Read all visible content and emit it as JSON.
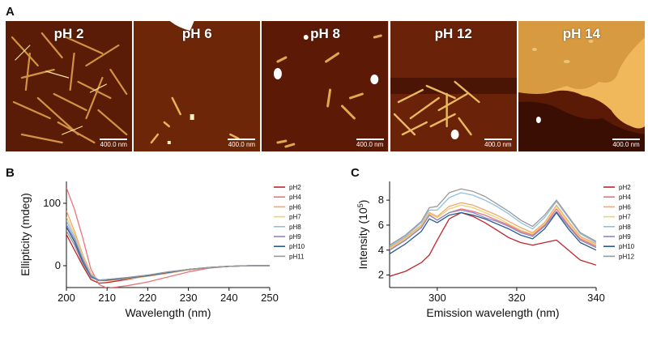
{
  "panels": {
    "a": "A",
    "b": "B",
    "c": "C"
  },
  "afm": {
    "tiles": [
      {
        "label": "pH 2",
        "scale": "400.0 nm"
      },
      {
        "label": "pH 6",
        "scale": "400.0 nm"
      },
      {
        "label": "pH 8",
        "scale": "400.0 nm"
      },
      {
        "label": "pH 12",
        "scale": "400.0 nm"
      },
      {
        "label": "pH 14",
        "scale": "400.0 nm"
      }
    ]
  },
  "chart_data": [
    {
      "type": "line",
      "xlabel": "Wavelength (nm)",
      "ylabel": "Ellipticity (mdeg)",
      "xlim": [
        200,
        250
      ],
      "ylim": [
        -35,
        135
      ],
      "xticks": [
        200,
        210,
        220,
        230,
        240,
        250
      ],
      "yticks": [
        0,
        100
      ],
      "grid": false,
      "legend": "top-right",
      "x": [
        200,
        202,
        204,
        206,
        208,
        210,
        215,
        220,
        225,
        230,
        235,
        240,
        245,
        250
      ],
      "series": [
        {
          "name": "pH2",
          "color": "#c0262d",
          "values": [
            50,
            25,
            0,
            -22,
            -28,
            -27,
            -22,
            -16,
            -11,
            -6,
            -3,
            -1,
            0,
            0
          ]
        },
        {
          "name": "pH4",
          "color": "#e8757a",
          "values": [
            125,
            90,
            45,
            -5,
            -30,
            -36,
            -32,
            -26,
            -18,
            -10,
            -4,
            -1,
            0,
            0
          ]
        },
        {
          "name": "pH6",
          "color": "#f3a86b",
          "values": [
            88,
            55,
            18,
            -12,
            -24,
            -24,
            -21,
            -17,
            -12,
            -7,
            -3,
            -1,
            0,
            0
          ]
        },
        {
          "name": "pH7",
          "color": "#f0cf72",
          "values": [
            78,
            50,
            15,
            -14,
            -24,
            -23,
            -20,
            -16,
            -11,
            -7,
            -3,
            -1,
            0,
            0
          ]
        },
        {
          "name": "pH8",
          "color": "#8fc1e3",
          "values": [
            72,
            46,
            12,
            -15,
            -23,
            -22,
            -19,
            -15,
            -11,
            -6,
            -3,
            -1,
            0,
            0
          ]
        },
        {
          "name": "pH9",
          "color": "#8a86c8",
          "values": [
            66,
            42,
            10,
            -16,
            -23,
            -22,
            -19,
            -15,
            -10,
            -6,
            -3,
            -1,
            0,
            0
          ]
        },
        {
          "name": "pH10",
          "color": "#2a5b8f",
          "values": [
            62,
            38,
            6,
            -18,
            -24,
            -23,
            -20,
            -16,
            -11,
            -6,
            -3,
            -1,
            0,
            0
          ]
        },
        {
          "name": "pH11",
          "color": "#999999",
          "values": [
            56,
            33,
            3,
            -19,
            -24,
            -22,
            -19,
            -15,
            -10,
            -6,
            -3,
            -1,
            0,
            0
          ]
        }
      ]
    },
    {
      "type": "line",
      "xlabel": "Emission wavelength (nm)",
      "ylabel": "Intensity (10",
      "ylabel_exp": "5",
      "ylabel_tail": ")",
      "xlim": [
        288,
        340
      ],
      "ylim": [
        1,
        9.5
      ],
      "xticks": [
        300,
        320,
        340
      ],
      "yticks": [
        2,
        4,
        6,
        8
      ],
      "grid": false,
      "legend": "top-right",
      "x": [
        288,
        292,
        296,
        298,
        300,
        303,
        306,
        309,
        312,
        315,
        318,
        321,
        324,
        327,
        330,
        333,
        336,
        340
      ],
      "series": [
        {
          "name": "pH2",
          "color": "#c0262d",
          "values": [
            1.9,
            2.3,
            3.0,
            3.6,
            4.8,
            6.5,
            7.0,
            6.7,
            6.2,
            5.6,
            5.0,
            4.6,
            4.4,
            4.6,
            4.8,
            4.0,
            3.2,
            2.8
          ]
        },
        {
          "name": "pH4",
          "color": "#e8757a",
          "values": [
            4.0,
            4.8,
            5.8,
            6.8,
            6.4,
            7.0,
            7.3,
            7.1,
            6.8,
            6.4,
            6.0,
            5.5,
            5.2,
            6.0,
            7.3,
            6.0,
            4.9,
            4.3
          ]
        },
        {
          "name": "pH6",
          "color": "#f3a86b",
          "values": [
            4.2,
            5.0,
            6.0,
            7.0,
            6.7,
            7.5,
            7.8,
            7.6,
            7.2,
            6.8,
            6.3,
            5.8,
            5.4,
            6.2,
            7.6,
            6.3,
            5.1,
            4.5
          ]
        },
        {
          "name": "pH7",
          "color": "#f0cf72",
          "values": [
            4.1,
            4.9,
            5.9,
            6.9,
            6.6,
            7.3,
            7.6,
            7.4,
            7.0,
            6.6,
            6.1,
            5.6,
            5.3,
            6.1,
            7.5,
            6.2,
            5.0,
            4.4
          ]
        },
        {
          "name": "pH8",
          "color": "#8fc1e3",
          "values": [
            4.3,
            5.1,
            6.2,
            7.2,
            7.2,
            8.2,
            8.6,
            8.4,
            8.0,
            7.5,
            6.9,
            6.2,
            5.7,
            6.6,
            7.9,
            6.6,
            5.3,
            4.6
          ]
        },
        {
          "name": "pH9",
          "color": "#8a86c8",
          "values": [
            4.0,
            4.8,
            5.8,
            6.8,
            6.4,
            7.0,
            7.2,
            7.0,
            6.6,
            6.3,
            5.9,
            5.4,
            5.1,
            5.9,
            7.1,
            5.9,
            4.8,
            4.2
          ]
        },
        {
          "name": "pH10",
          "color": "#2a5b8f",
          "values": [
            3.7,
            4.5,
            5.5,
            6.5,
            6.2,
            6.8,
            7.0,
            6.8,
            6.5,
            6.1,
            5.7,
            5.2,
            4.9,
            5.7,
            7.0,
            5.7,
            4.6,
            4.0
          ]
        },
        {
          "name": "pH12",
          "color": "#999999",
          "values": [
            4.4,
            5.2,
            6.3,
            7.4,
            7.5,
            8.6,
            8.9,
            8.7,
            8.3,
            7.7,
            7.1,
            6.4,
            5.9,
            6.8,
            8.0,
            6.7,
            5.4,
            4.7
          ]
        }
      ]
    }
  ],
  "afm_colors": {
    "dark": "#4a1606",
    "mid": "#7a2c0b",
    "bright": "#f2c66c"
  }
}
